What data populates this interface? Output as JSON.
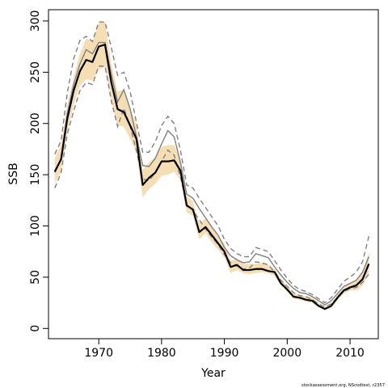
{
  "chart_data": {
    "type": "line",
    "title": "",
    "xlabel": "Year",
    "ylabel": "SSB",
    "xlim": [
      1962,
      2014.5
    ],
    "ylim": [
      -10,
      311
    ],
    "xticks": [
      1970,
      1980,
      1990,
      2000,
      2010
    ],
    "yticks": [
      0,
      50,
      100,
      150,
      200,
      250,
      300
    ],
    "grid": false,
    "legend": "none",
    "footnote": "stockassessment.org, NScodtest, r2357",
    "colors": {
      "band": "#f5deb3",
      "series_main": "#000000",
      "series_alt": "#808080"
    },
    "x": [
      1963,
      1964,
      1965,
      1966,
      1967,
      1968,
      1969,
      1970,
      1971,
      1972,
      1973,
      1974,
      1975,
      1976,
      1977,
      1978,
      1979,
      1980,
      1981,
      1982,
      1983,
      1984,
      1985,
      1986,
      1987,
      1988,
      1989,
      1990,
      1991,
      1992,
      1993,
      1994,
      1995,
      1996,
      1997,
      1998,
      1999,
      2000,
      2001,
      2002,
      2003,
      2004,
      2005,
      2006,
      2007,
      2008,
      2009,
      2010,
      2011,
      2012,
      2013
    ],
    "series": [
      {
        "role": "estimate",
        "values": [
          153,
          165,
          205,
          232,
          251,
          262,
          260,
          275,
          277,
          240,
          214,
          211,
          198,
          185,
          140,
          147,
          152,
          163,
          163,
          164,
          154,
          120,
          116,
          94,
          99,
          91,
          83,
          75,
          60,
          62,
          57,
          57,
          58,
          58,
          56,
          55,
          44,
          38,
          31,
          30,
          28,
          27,
          22,
          19,
          22,
          30,
          37,
          40,
          42,
          48,
          63
        ],
        "lower": [
          142,
          153,
          192,
          218,
          237,
          243,
          242,
          253,
          255,
          222,
          198,
          197,
          185,
          172,
          128,
          136,
          141,
          149,
          150,
          153,
          145,
          113,
          110,
          87,
          93,
          84,
          77,
          69,
          54,
          57,
          54,
          53,
          54,
          55,
          54,
          51,
          42,
          36,
          29,
          28,
          26,
          25,
          21,
          18,
          20,
          28,
          34,
          37,
          37,
          42,
          54
        ],
        "upper": [
          166,
          180,
          218,
          245,
          268,
          283,
          280,
          298,
          299,
          258,
          231,
          233,
          214,
          199,
          155,
          162,
          167,
          177,
          179,
          179,
          165,
          129,
          124,
          103,
          107,
          99,
          90,
          83,
          66,
          68,
          63,
          63,
          63,
          64,
          62,
          58,
          48,
          42,
          34,
          33,
          31,
          30,
          25,
          21,
          24,
          33,
          40,
          44,
          47,
          56,
          74
        ]
      },
      {
        "role": "alternative",
        "values": [
          152,
          166,
          210,
          238,
          258,
          272,
          268,
          279,
          279,
          248,
          221,
          233,
          214,
          187,
          159,
          158,
          166,
          180,
          193,
          187,
          162,
          131,
          127,
          117,
          108,
          99,
          91,
          79,
          71,
          67,
          64,
          65,
          73,
          71,
          69,
          60,
          52,
          45,
          39,
          35,
          34,
          31,
          27,
          23,
          27,
          34,
          41,
          44,
          47,
          55,
          70
        ],
        "lower": [
          137,
          152,
          190,
          212,
          232,
          240,
          238,
          256,
          256,
          222,
          197,
          215,
          197,
          173,
          146,
          144,
          152,
          163,
          174,
          169,
          148,
          121,
          115,
          106,
          97,
          89,
          82,
          72,
          64,
          61,
          58,
          59,
          65,
          64,
          62,
          55,
          47,
          41,
          35,
          32,
          31,
          28,
          24,
          21,
          24,
          30,
          36,
          39,
          40,
          45,
          53
        ],
        "upper": [
          170,
          183,
          230,
          263,
          281,
          285,
          280,
          299,
          299,
          274,
          247,
          250,
          231,
          201,
          172,
          172,
          182,
          198,
          207,
          200,
          174,
          140,
          137,
          127,
          118,
          109,
          100,
          87,
          78,
          73,
          70,
          70,
          79,
          77,
          75,
          66,
          57,
          49,
          42,
          38,
          36,
          33,
          29,
          25,
          30,
          38,
          46,
          50,
          55,
          65,
          90
        ]
      }
    ]
  }
}
